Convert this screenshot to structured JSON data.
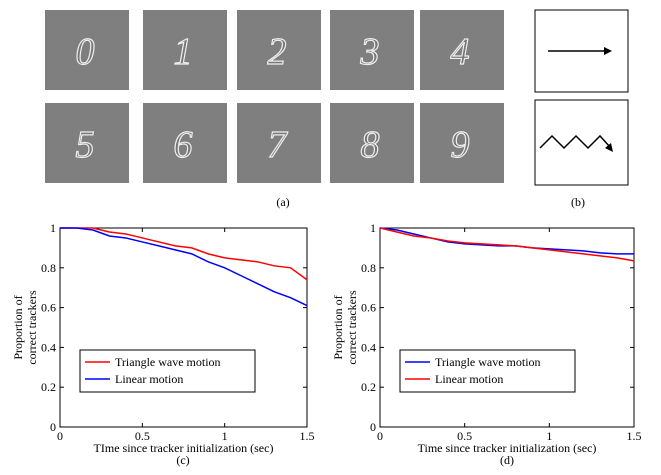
{
  "panels": {
    "a": {
      "label": "(a)",
      "digits": [
        "0",
        "1",
        "2",
        "3",
        "4",
        "5",
        "6",
        "7",
        "8",
        "9"
      ]
    },
    "b": {
      "label": "(b)"
    }
  },
  "chart_data": [
    {
      "type": "line",
      "panel_label": "(c)",
      "xlabel": "TIme since tracker initialization (sec)",
      "ylabel": [
        "Proportion of",
        "correct trackers"
      ],
      "x": [
        0,
        0.1,
        0.2,
        0.3,
        0.4,
        0.5,
        0.6,
        0.7,
        0.8,
        0.9,
        1.0,
        1.1,
        1.2,
        1.3,
        1.4,
        1.5
      ],
      "series": [
        {
          "name": "Triangle wave motion",
          "color": "#ff0000",
          "values": [
            1,
            1,
            1,
            0.98,
            0.97,
            0.95,
            0.93,
            0.91,
            0.9,
            0.87,
            0.85,
            0.84,
            0.83,
            0.81,
            0.8,
            0.74
          ]
        },
        {
          "name": "Linear motion",
          "color": "#0000ff",
          "values": [
            1,
            1,
            0.99,
            0.96,
            0.95,
            0.93,
            0.91,
            0.89,
            0.87,
            0.83,
            0.8,
            0.76,
            0.72,
            0.68,
            0.65,
            0.61
          ]
        }
      ],
      "xlim": [
        0,
        1.5
      ],
      "xticks": [
        0,
        0.5,
        1,
        1.5
      ],
      "ylim": [
        0,
        1
      ],
      "yticks": [
        0,
        0.2,
        0.4,
        0.6,
        0.8,
        1
      ],
      "legend": "lower left"
    },
    {
      "type": "line",
      "panel_label": "(d)",
      "xlabel": "Time since tracker initialization (sec)",
      "ylabel": [
        "Proportion of",
        "correct trackers"
      ],
      "x": [
        0,
        0.1,
        0.2,
        0.3,
        0.4,
        0.5,
        0.6,
        0.7,
        0.8,
        0.9,
        1.0,
        1.1,
        1.2,
        1.3,
        1.4,
        1.5
      ],
      "series": [
        {
          "name": "Triangle wave motion",
          "color": "#0000ff",
          "values": [
            1,
            0.99,
            0.97,
            0.95,
            0.93,
            0.92,
            0.915,
            0.91,
            0.91,
            0.9,
            0.895,
            0.89,
            0.885,
            0.875,
            0.87,
            0.87
          ]
        },
        {
          "name": "Linear motion",
          "color": "#ff0000",
          "values": [
            1,
            0.98,
            0.96,
            0.95,
            0.935,
            0.925,
            0.92,
            0.915,
            0.91,
            0.9,
            0.89,
            0.88,
            0.87,
            0.86,
            0.85,
            0.835
          ]
        }
      ],
      "xlim": [
        0,
        1.5
      ],
      "xticks": [
        0,
        0.5,
        1,
        1.5
      ],
      "ylim": [
        0,
        1
      ],
      "yticks": [
        0,
        0.2,
        0.4,
        0.6,
        0.8,
        1
      ],
      "legend": "lower left"
    }
  ]
}
